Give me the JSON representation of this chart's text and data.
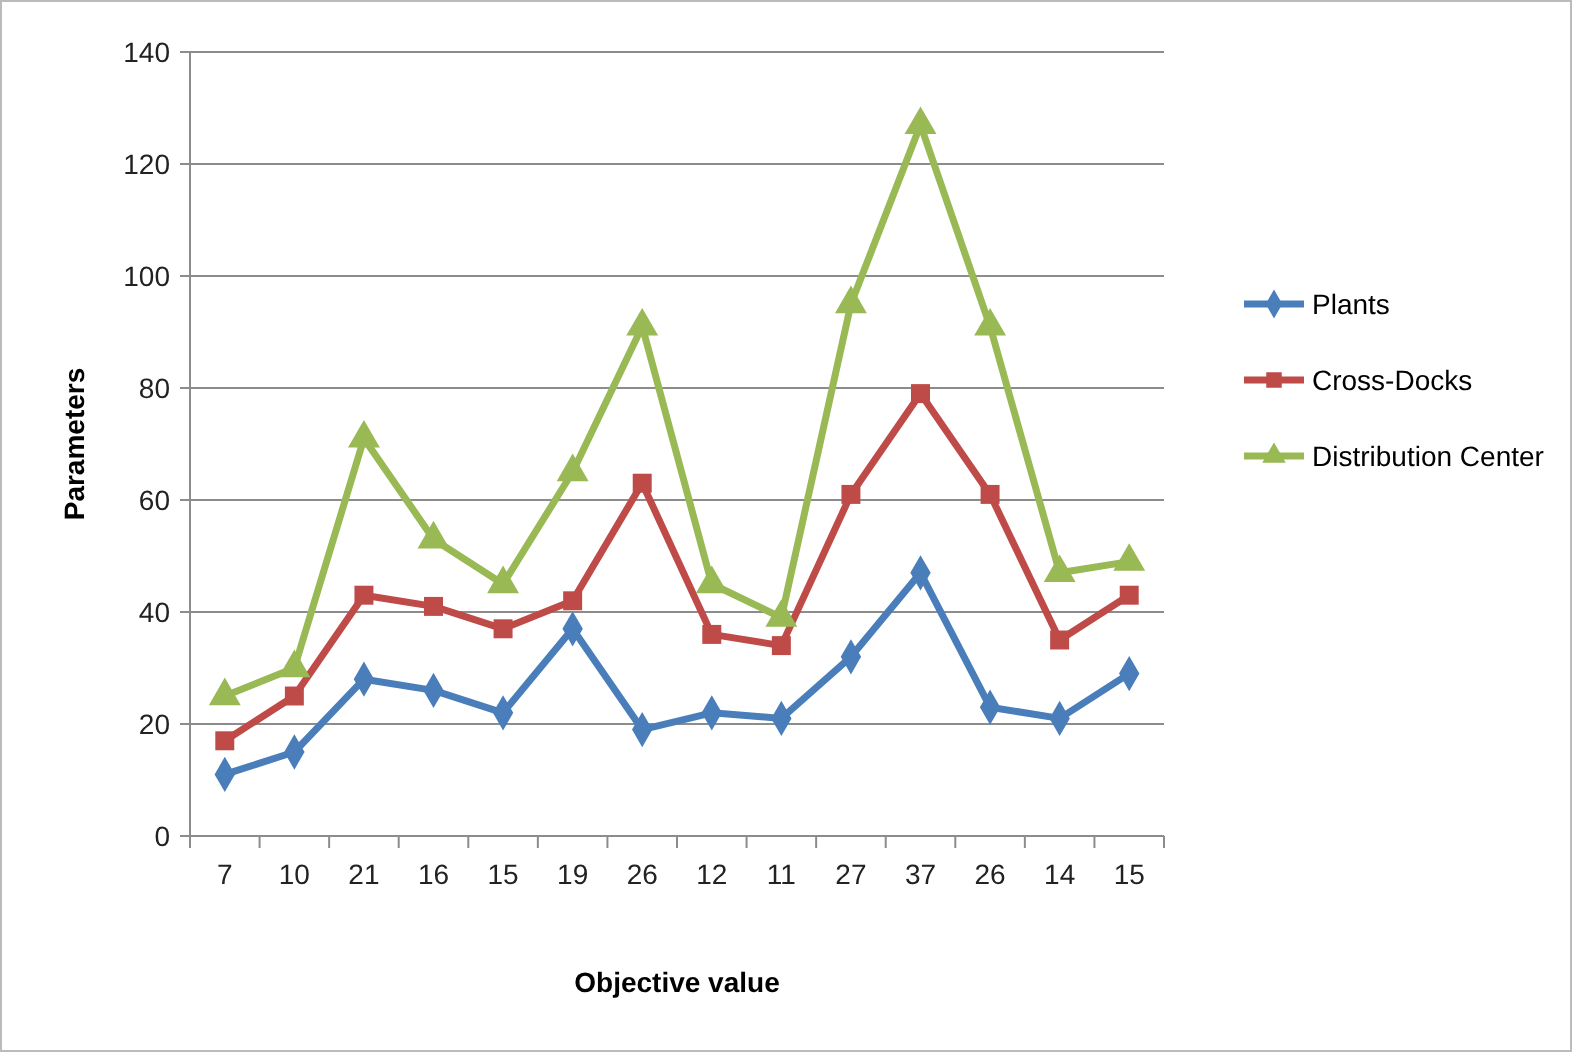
{
  "chart_data": {
    "type": "line",
    "xlabel": "Objective value",
    "ylabel": "Parameters",
    "categories": [
      "7",
      "10",
      "21",
      "16",
      "15",
      "19",
      "26",
      "12",
      "11",
      "27",
      "37",
      "26",
      "14",
      "15"
    ],
    "series": [
      {
        "name": "Plants",
        "color": "#4a7ebb",
        "marker": "diamond",
        "values": [
          11,
          15,
          28,
          26,
          22,
          37,
          19,
          22,
          21,
          32,
          47,
          23,
          21,
          29
        ]
      },
      {
        "name": "Cross-Docks",
        "color": "#be4b48",
        "marker": "square",
        "values": [
          17,
          25,
          43,
          41,
          37,
          42,
          63,
          36,
          34,
          61,
          79,
          61,
          35,
          43
        ]
      },
      {
        "name": "Distribution Center",
        "color": "#98b954",
        "marker": "triangle",
        "values": [
          25,
          30,
          71,
          53,
          45,
          65,
          91,
          45,
          39,
          95,
          127,
          91,
          47,
          49
        ]
      }
    ],
    "ylim": [
      0,
      140
    ],
    "yticks": [
      0,
      20,
      40,
      60,
      80,
      100,
      120,
      140
    ],
    "grid": "y",
    "legend": "right",
    "line_style": "solid"
  }
}
